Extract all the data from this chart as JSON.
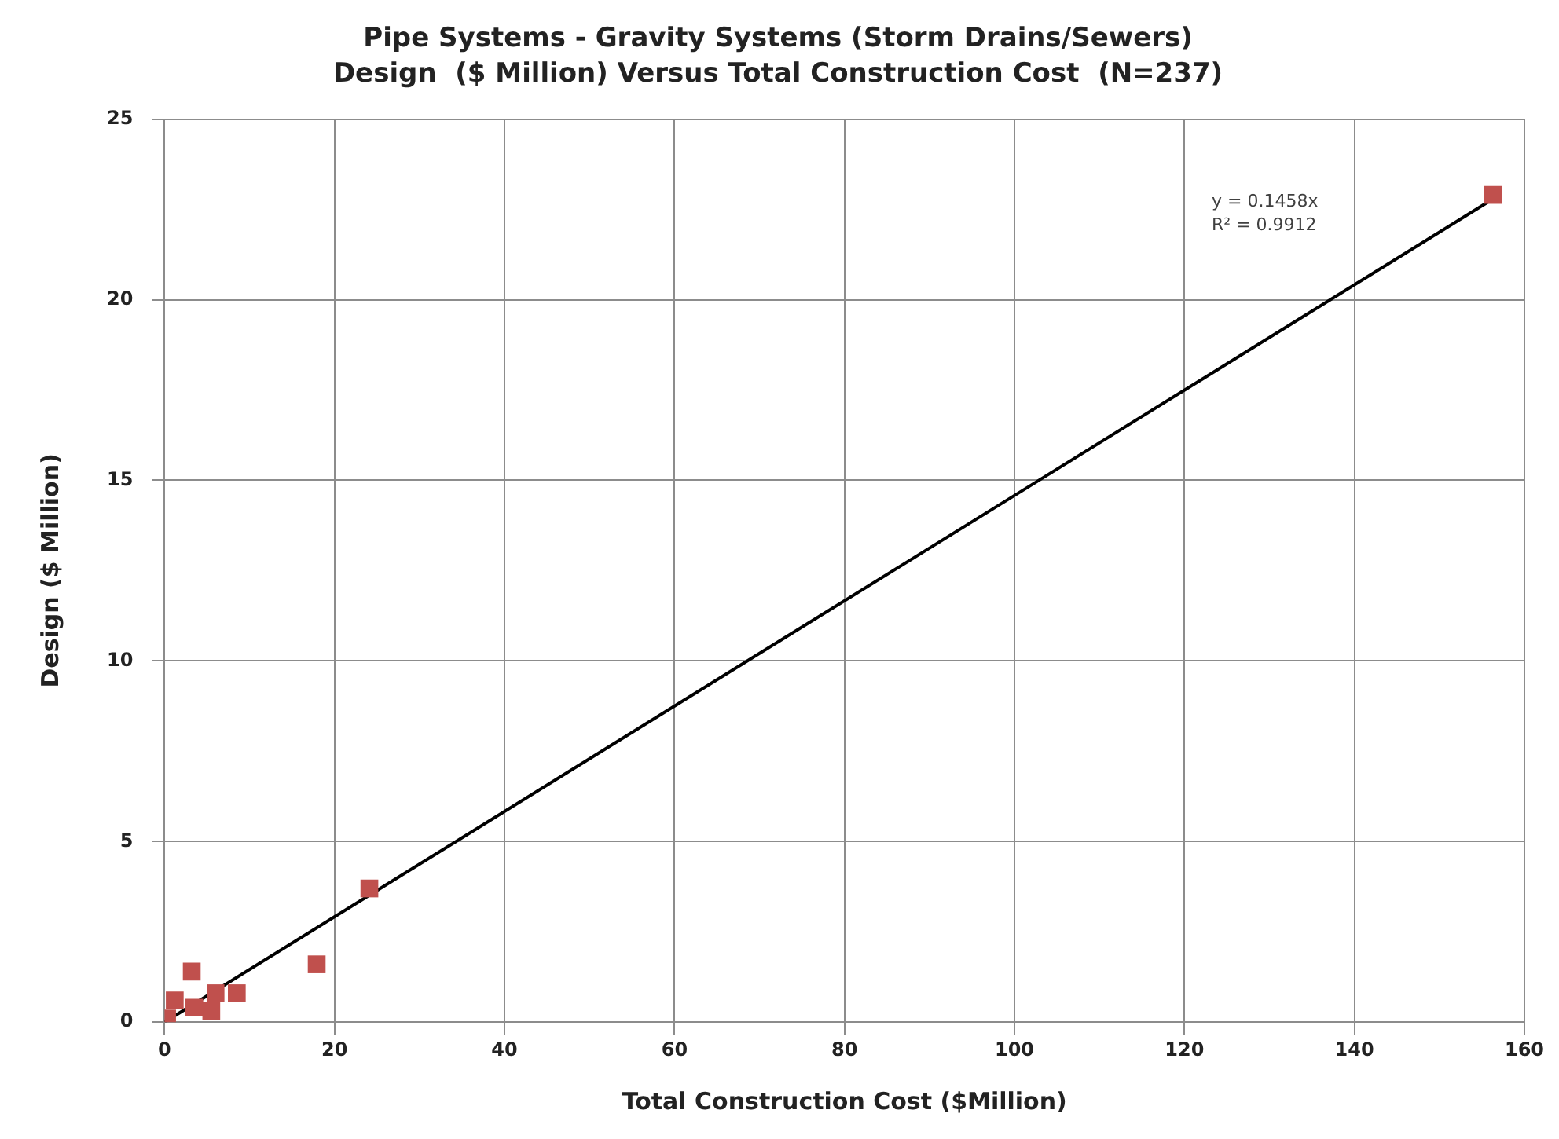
{
  "chart_data": {
    "type": "scatter",
    "title": "Pipe Systems - Gravity Systems (Storm Drains/Sewers)",
    "subtitle": "Design  ($ Million) Versus Total Construction Cost  (N=237)",
    "xlabel": "Total Construction Cost ($Million)",
    "ylabel": "Design ($ Million)",
    "xlim": [
      0,
      160
    ],
    "xticks": [
      0,
      20,
      40,
      60,
      80,
      100,
      120,
      140,
      160
    ],
    "ylim": [
      0,
      25
    ],
    "yticks": [
      0,
      5,
      10,
      15,
      20,
      25
    ],
    "grid": true,
    "legend": false,
    "marker": "square",
    "annotations": [
      "y = 0.1458x",
      "R² = 0.9912"
    ],
    "series": [
      {
        "color": "#c0504d",
        "x": [
          156.3,
          24.1,
          17.9,
          8.5,
          3.2,
          5.5,
          6,
          3.5,
          1.2,
          0.3
        ],
        "values": [
          22.9,
          3.7,
          1.6,
          0.8,
          1.4,
          0.3,
          0.8,
          0.4,
          0.6,
          0.1
        ]
      },
      {
        "type": "line",
        "color": "#000000",
        "marker": "none",
        "x": [
          0,
          156.3
        ],
        "values": [
          0,
          22.79
        ]
      }
    ]
  }
}
